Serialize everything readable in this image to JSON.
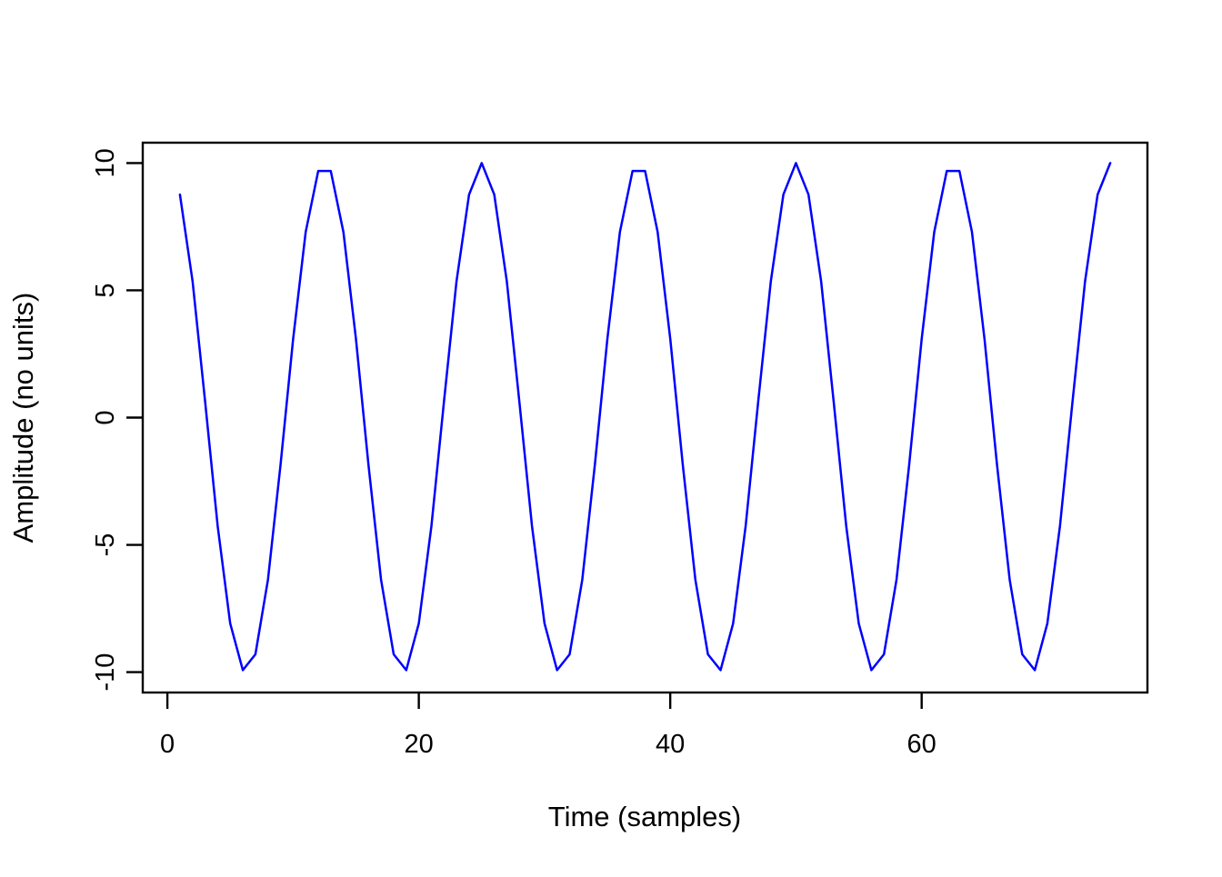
{
  "figure": {
    "background": "#ffffff",
    "axis_color": "#000000"
  },
  "chart_data": {
    "type": "line",
    "title": "",
    "xlabel": "Time (samples)",
    "ylabel": "Amplitude (no units)",
    "legend": null,
    "grid": false,
    "line_color": "#0000FF",
    "xlim": [
      -1.96,
      77.96
    ],
    "ylim": [
      -10.8,
      10.8
    ],
    "x_ticks": [
      0,
      20,
      40,
      60
    ],
    "y_ticks": [
      -10,
      -5,
      0,
      5,
      10
    ],
    "x": [
      1,
      2,
      3,
      4,
      5,
      6,
      7,
      8,
      9,
      10,
      11,
      12,
      13,
      14,
      15,
      16,
      17,
      18,
      19,
      20,
      21,
      22,
      23,
      24,
      25,
      26,
      27,
      28,
      29,
      30,
      31,
      32,
      33,
      34,
      35,
      36,
      37,
      38,
      39,
      40,
      41,
      42,
      43,
      44,
      45,
      46,
      47,
      48,
      49,
      50,
      51,
      52,
      53,
      54,
      55,
      56,
      57,
      58,
      59,
      60,
      61,
      62,
      63,
      64,
      65,
      66,
      67,
      68,
      69,
      70,
      71,
      72,
      73,
      74,
      75
    ],
    "y": [
      8.76,
      5.36,
      0.63,
      -4.26,
      -8.09,
      -9.92,
      -9.3,
      -6.37,
      -1.87,
      3.09,
      7.29,
      9.69,
      9.69,
      7.29,
      3.09,
      -1.87,
      -6.37,
      -9.3,
      -9.92,
      -8.09,
      -4.26,
      0.63,
      5.36,
      8.76,
      10,
      8.76,
      5.36,
      0.63,
      -4.26,
      -8.09,
      -9.92,
      -9.3,
      -6.37,
      -1.87,
      3.09,
      7.29,
      9.69,
      9.69,
      7.29,
      3.09,
      -1.87,
      -6.37,
      -9.3,
      -9.92,
      -8.09,
      -4.26,
      0.63,
      5.36,
      8.76,
      10,
      8.76,
      5.36,
      0.63,
      -4.26,
      -8.09,
      -9.92,
      -9.3,
      -6.37,
      -1.87,
      3.09,
      7.29,
      9.69,
      9.69,
      7.29,
      3.09,
      -1.87,
      -6.37,
      -9.3,
      -9.92,
      -8.09,
      -4.26,
      0.63,
      5.36,
      8.76,
      10
    ]
  }
}
